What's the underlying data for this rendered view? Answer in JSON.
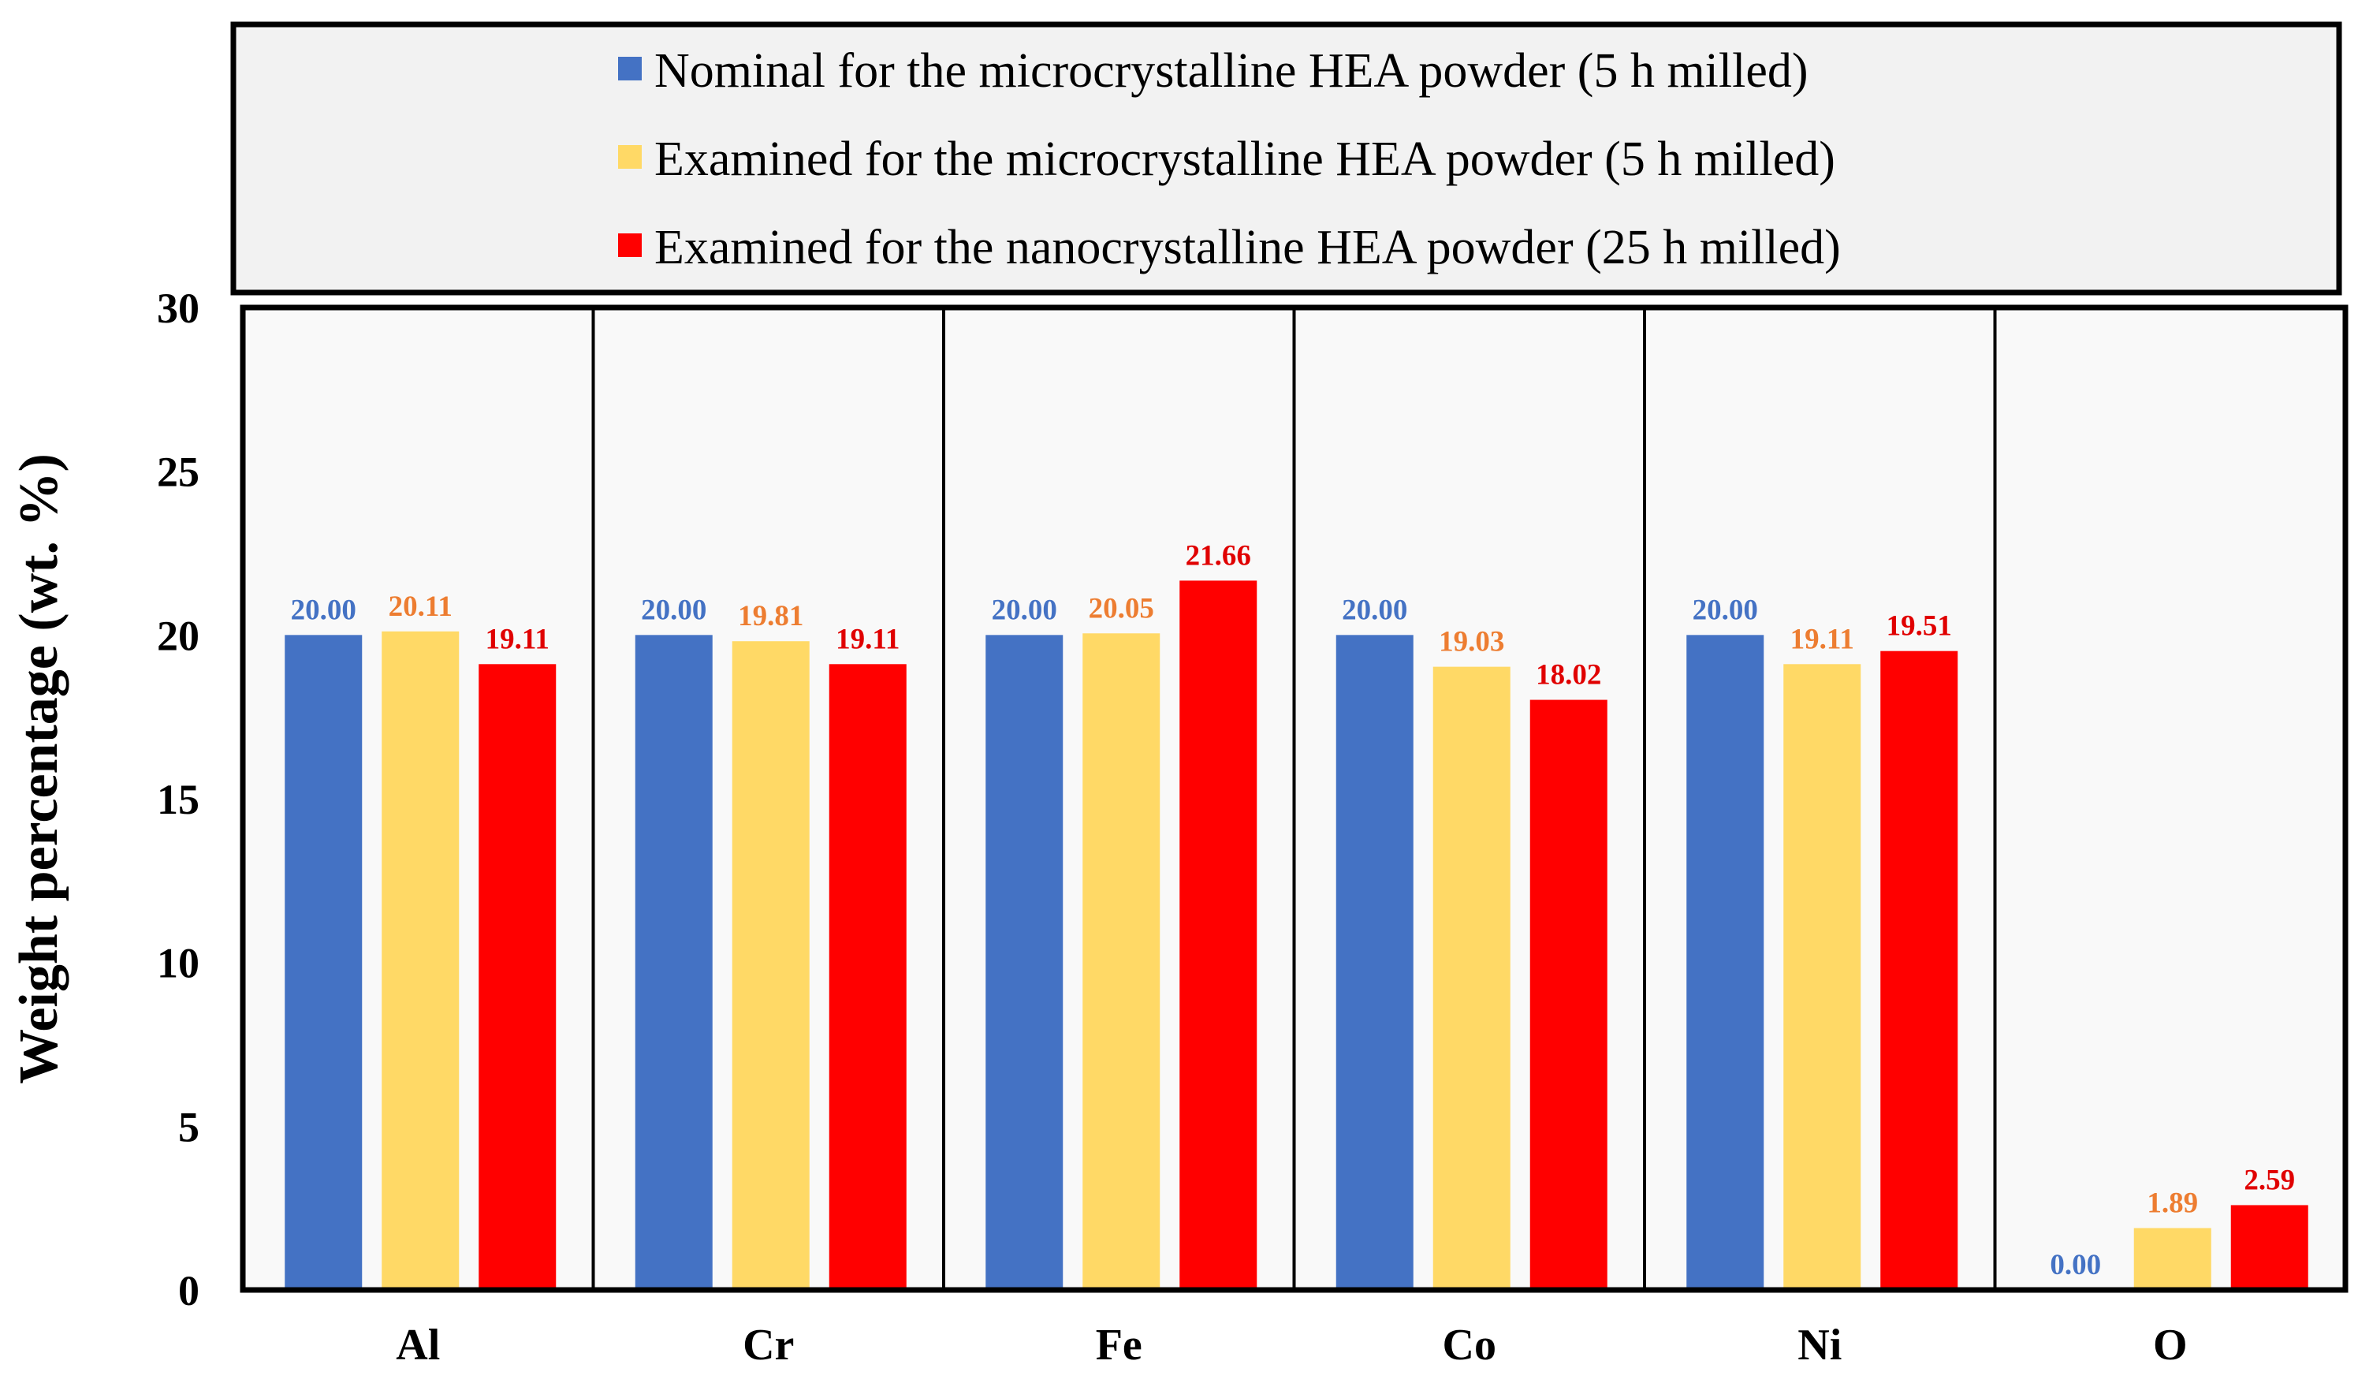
{
  "chart_data": {
    "type": "bar",
    "title": "",
    "xlabel": "",
    "ylabel": "Weight percentage (wt. %)",
    "ylim": [
      0,
      30
    ],
    "yticks": [
      "0",
      "5",
      "10",
      "15",
      "20",
      "25",
      "30"
    ],
    "legend_position": "top",
    "categories": [
      "Al",
      "Cr",
      "Fe",
      "Co",
      "Ni",
      "O"
    ],
    "series": [
      {
        "name": "Nominal for the microcrystalline HEA powder (5 h milled)",
        "color": "#4472C4",
        "label_color": "#4472C4",
        "values": [
          20.0,
          20.0,
          20.0,
          20.0,
          20.0,
          0.0
        ],
        "labels": [
          "20.00",
          "20.00",
          "20.00",
          "20.00",
          "20.00",
          "0.00"
        ]
      },
      {
        "name": "Examined for the microcrystalline HEA powder (5 h milled)",
        "color": "#FFD966",
        "label_color": "#ED7D31",
        "values": [
          20.11,
          19.81,
          20.05,
          19.03,
          19.11,
          1.89
        ],
        "labels": [
          "20.11",
          "19.81",
          "20.05",
          "19.03",
          "19.11",
          "1.89"
        ]
      },
      {
        "name": "Examined for the nanocrystalline HEA powder (25 h milled)",
        "color": "#FF0000",
        "label_color": "#E00000",
        "values": [
          19.11,
          19.11,
          21.66,
          18.02,
          19.51,
          2.59
        ],
        "labels": [
          "19.11",
          "19.11",
          "21.66",
          "18.02",
          "19.51",
          "2.59"
        ]
      }
    ]
  }
}
